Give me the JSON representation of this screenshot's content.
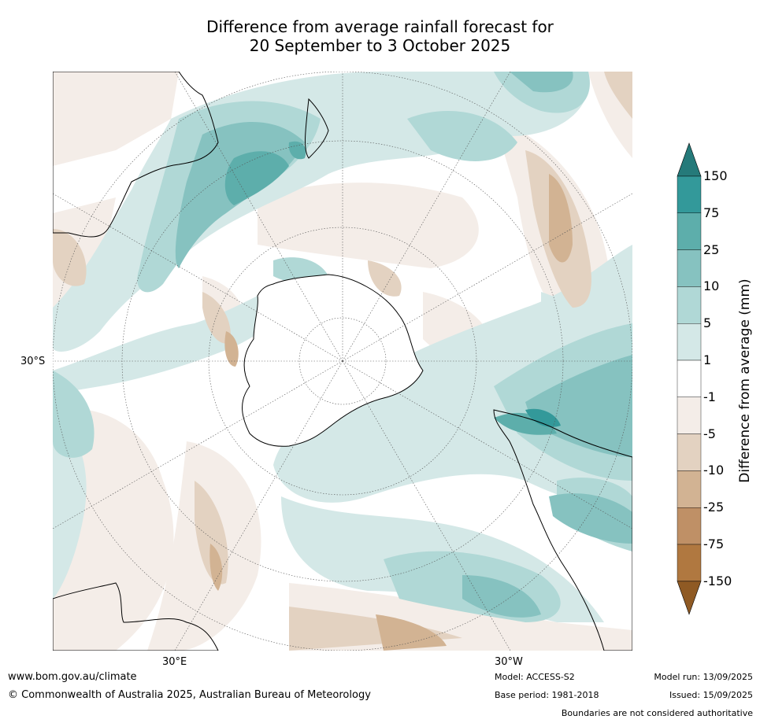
{
  "title": {
    "line1": "Difference from average rainfall forecast for",
    "line2": "20 September to 3 October 2025"
  },
  "map": {
    "projection": "south-polar stereographic",
    "axis_labels": {
      "left": "30°S",
      "bottom_left": "30°E",
      "bottom_right": "30°W"
    },
    "regions_shown": [
      "Antarctica",
      "Australia",
      "New Zealand",
      "South America",
      "Southern Africa"
    ],
    "colors": {
      "dry_150": "#8f5a24",
      "dry_75": "#b07840",
      "dry_25": "#bf9066",
      "dry_10": "#d2b393",
      "dry_5": "#e3d2c1",
      "dry_1": "#f4ede8",
      "neutral": "#ffffff",
      "wet_1": "#d4e8e7",
      "wet_5": "#b0d8d6",
      "wet_10": "#86c2c0",
      "wet_25": "#5daeab",
      "wet_75": "#33999a",
      "wet_150": "#257a7a"
    }
  },
  "colorbar": {
    "label": "Difference from average (mm)",
    "ticks": [
      "150",
      "75",
      "25",
      "10",
      "5",
      "1",
      "-1",
      "-5",
      "-10",
      "-25",
      "-75",
      "-150"
    ],
    "top_extension_color": "#257a7a",
    "bottom_extension_color": "#8f5a24"
  },
  "footer": {
    "website": "www.bom.gov.au/climate",
    "copyright": "© Commonwealth of Australia 2025, Australian Bureau of Meteorology",
    "model": "Model: ACCESS-S2",
    "base_period": "Base period: 1981-2018",
    "model_run": "Model run: 13/09/2025",
    "issued": "Issued: 15/09/2025",
    "disclaimer": "Boundaries are not considered authoritative"
  }
}
